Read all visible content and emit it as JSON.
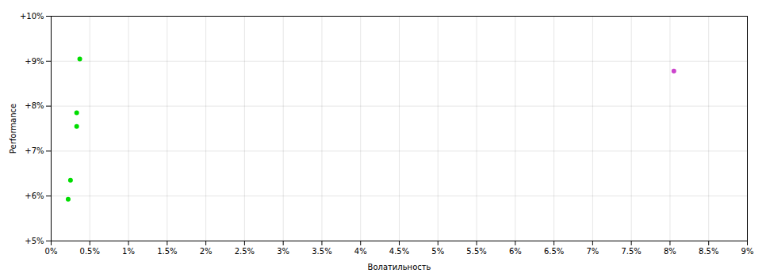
{
  "chart_data": {
    "type": "scatter",
    "xlabel": "Волатильность",
    "ylabel": "Performance",
    "xlim": [
      0.0,
      0.09
    ],
    "ylim": [
      0.05,
      0.1
    ],
    "xticks": [
      {
        "value": 0.0,
        "label": "0%"
      },
      {
        "value": 0.005,
        "label": "0.5%"
      },
      {
        "value": 0.01,
        "label": "1%"
      },
      {
        "value": 0.015,
        "label": "1.5%"
      },
      {
        "value": 0.02,
        "label": "2%"
      },
      {
        "value": 0.025,
        "label": "2.5%"
      },
      {
        "value": 0.03,
        "label": "3%"
      },
      {
        "value": 0.035,
        "label": "3.5%"
      },
      {
        "value": 0.04,
        "label": "4%"
      },
      {
        "value": 0.045,
        "label": "4.5%"
      },
      {
        "value": 0.05,
        "label": "5%"
      },
      {
        "value": 0.055,
        "label": "5.5%"
      },
      {
        "value": 0.06,
        "label": "6%"
      },
      {
        "value": 0.065,
        "label": "6.5%"
      },
      {
        "value": 0.07,
        "label": "7%"
      },
      {
        "value": 0.075,
        "label": "7.5%"
      },
      {
        "value": 0.08,
        "label": "8%"
      },
      {
        "value": 0.085,
        "label": "8.5%"
      },
      {
        "value": 0.09,
        "label": "9%"
      }
    ],
    "yticks": [
      {
        "value": 0.05,
        "label": "+5%"
      },
      {
        "value": 0.06,
        "label": "+6%"
      },
      {
        "value": 0.07,
        "label": "+7%"
      },
      {
        "value": 0.08,
        "label": "+8%"
      },
      {
        "value": 0.09,
        "label": "+9%"
      },
      {
        "value": 0.1,
        "label": "+10%"
      }
    ],
    "grid": true,
    "series": [
      {
        "color": "#00dd00",
        "x": [
          0.0037,
          0.0033,
          0.0033,
          0.0025,
          0.0022
        ],
        "y": [
          0.0905,
          0.0785,
          0.0755,
          0.0635,
          0.0593
        ]
      },
      {
        "color": "#cc44cc",
        "x": [
          0.0805
        ],
        "y": [
          0.0878
        ]
      }
    ]
  }
}
